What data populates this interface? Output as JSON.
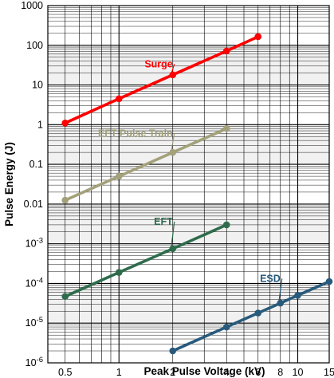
{
  "chart_data": {
    "type": "line",
    "title": "",
    "xlabel": "Peak Pulse Voltage (kV)",
    "ylabel": "Pulse Energy (J)",
    "x_scale": "log",
    "y_scale": "log",
    "xlim": [
      0.4,
      15
    ],
    "ylim": [
      1e-06,
      1000
    ],
    "grid": true,
    "x_ticks": [
      {
        "value": 0.5,
        "label": "0.5"
      },
      {
        "value": 1,
        "label": "1"
      },
      {
        "value": 2,
        "label": "2"
      },
      {
        "value": 4,
        "label": "4"
      },
      {
        "value": 6,
        "label": "6"
      },
      {
        "value": 8,
        "label": "8"
      },
      {
        "value": 10,
        "label": "10"
      },
      {
        "value": 15,
        "label": "15"
      }
    ],
    "y_ticks": [
      {
        "value": 1e-06,
        "base": "10",
        "exp": "-6",
        "plain": ""
      },
      {
        "value": 1e-05,
        "base": "10",
        "exp": "-5",
        "plain": ""
      },
      {
        "value": 0.0001,
        "base": "10",
        "exp": "-4",
        "plain": ""
      },
      {
        "value": 0.001,
        "base": "10",
        "exp": "-3",
        "plain": ""
      },
      {
        "value": 0.01,
        "base": "",
        "exp": "",
        "plain": "0.01"
      },
      {
        "value": 0.1,
        "base": "",
        "exp": "",
        "plain": "0.1"
      },
      {
        "value": 1,
        "base": "",
        "exp": "",
        "plain": "1"
      },
      {
        "value": 10,
        "base": "",
        "exp": "",
        "plain": "10"
      },
      {
        "value": 100,
        "base": "",
        "exp": "",
        "plain": "100"
      },
      {
        "value": 1000,
        "base": "",
        "exp": "",
        "plain": "1000"
      }
    ],
    "series": [
      {
        "name": "Surge",
        "color": "#ff0000",
        "points": [
          [
            0.5,
            1.1
          ],
          [
            1,
            4.5
          ],
          [
            2,
            18
          ],
          [
            4,
            72
          ],
          [
            6,
            165
          ]
        ],
        "label_at": [
          2,
          28
        ]
      },
      {
        "name": "EFT Pulse Train",
        "color": "#a3a17a",
        "points": [
          [
            0.5,
            0.0125
          ],
          [
            1,
            0.05
          ],
          [
            2,
            0.2
          ],
          [
            4,
            0.8
          ]
        ],
        "label_at": [
          2,
          0.5
        ]
      },
      {
        "name": "EFT",
        "color": "#2e6b4b",
        "points": [
          [
            0.5,
            4.7e-05
          ],
          [
            1,
            0.00019
          ],
          [
            2,
            0.00075
          ],
          [
            4,
            0.003
          ]
        ],
        "label_at": [
          2,
          0.003
        ]
      },
      {
        "name": "ESD",
        "color": "#285a7c",
        "points": [
          [
            2,
            2e-06
          ],
          [
            4,
            8e-06
          ],
          [
            6,
            1.8e-05
          ],
          [
            8,
            3.2e-05
          ],
          [
            10,
            5e-05
          ],
          [
            15,
            0.000112
          ]
        ],
        "label_at": [
          8,
          0.00011
        ]
      }
    ]
  }
}
